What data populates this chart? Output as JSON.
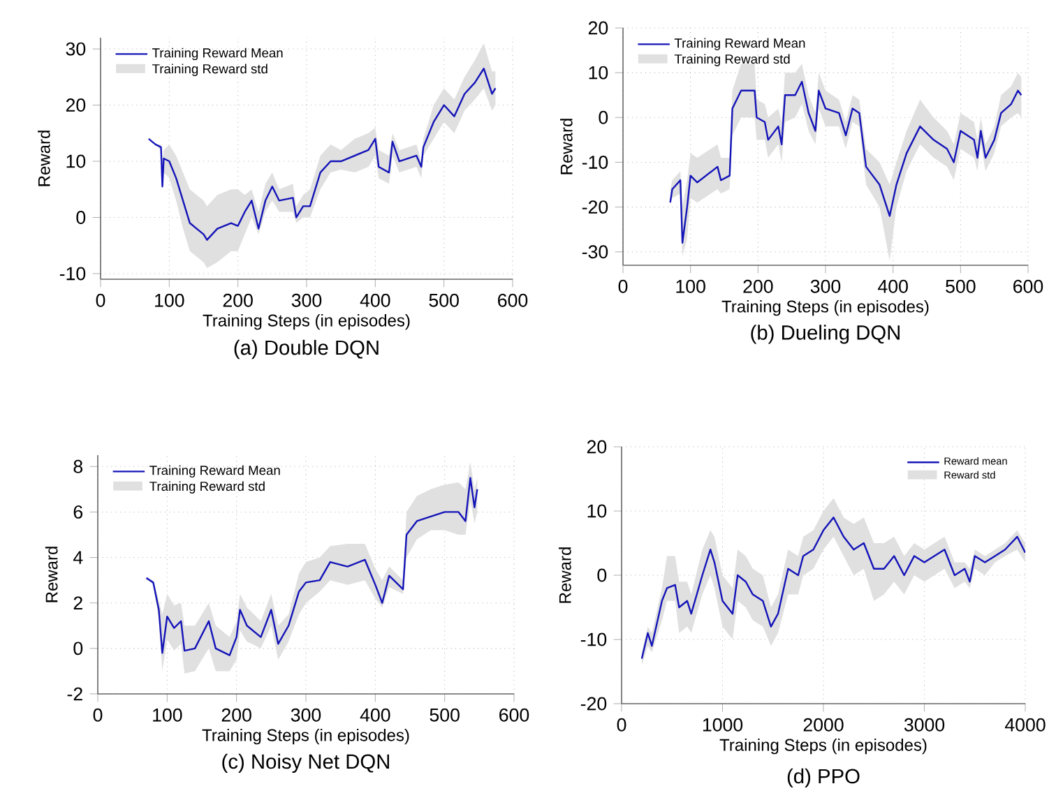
{
  "chart_data": [
    {
      "type": "line",
      "title": "(a) Double DQN",
      "xlabel": "Training Steps (in episodes)",
      "ylabel": "Reward",
      "xlim": [
        0,
        600
      ],
      "ylim": [
        -11,
        32
      ],
      "xticks": [
        0,
        100,
        200,
        300,
        400,
        500,
        600
      ],
      "yticks": [
        -10,
        0,
        10,
        20,
        30
      ],
      "grid": true,
      "legend": "top left",
      "annotations": [
        "Training Reward std"
      ],
      "series": [
        {
          "name": "Training Reward Mean",
          "color": "#1414b8",
          "x": [
            70,
            80,
            88,
            90,
            92,
            100,
            110,
            120,
            130,
            140,
            150,
            155,
            170,
            190,
            200,
            210,
            220,
            230,
            240,
            250,
            260,
            280,
            285,
            295,
            305,
            320,
            335,
            350,
            370,
            390,
            400,
            405,
            420,
            425,
            435,
            460,
            467,
            470,
            485,
            500,
            515,
            530,
            545,
            558,
            570,
            575
          ],
          "values": [
            14,
            13,
            12.5,
            5.5,
            10.5,
            10,
            7,
            3,
            -1,
            -2,
            -3,
            -4,
            -2,
            -1,
            -1.5,
            1,
            3,
            -2,
            3,
            5.5,
            3,
            3.5,
            0,
            2,
            2,
            8,
            10,
            10,
            11,
            12,
            14,
            9,
            8,
            13.5,
            10,
            11,
            9,
            12.5,
            17,
            20,
            18,
            22,
            24,
            26.5,
            22,
            23
          ],
          "lower": [
            14,
            13,
            12,
            5,
            8,
            7,
            3,
            -2,
            -6,
            -7,
            -8,
            -9,
            -8,
            -6,
            -6,
            -3,
            0,
            -3,
            1,
            3,
            1,
            1,
            -1,
            0,
            0,
            5,
            8,
            8.5,
            8,
            9,
            11,
            7,
            6,
            11,
            8,
            9,
            7,
            11,
            14,
            17,
            15,
            19,
            21,
            23,
            19,
            20
          ],
          "upper": [
            14,
            13,
            13,
            10,
            12,
            13,
            11,
            8,
            5,
            4,
            3,
            2,
            4,
            5,
            5,
            4,
            5,
            1,
            6,
            8,
            5,
            6,
            2,
            4,
            5,
            11,
            13,
            12,
            14,
            15,
            16,
            12,
            11,
            15,
            12,
            13,
            10,
            14,
            20,
            23,
            21,
            25,
            28,
            31,
            26,
            26
          ]
        }
      ]
    },
    {
      "type": "line",
      "title": "(b) Dueling DQN",
      "xlabel": "Training Steps (in episodes)",
      "ylabel": "Reward",
      "xlim": [
        0,
        600
      ],
      "ylim": [
        -33,
        20
      ],
      "xticks": [
        0,
        100,
        200,
        300,
        400,
        500,
        600
      ],
      "yticks": [
        -30,
        -20,
        -10,
        0,
        10,
        20
      ],
      "grid": true,
      "legend": "top left",
      "annotations": [
        "Training Reward std"
      ],
      "series": [
        {
          "name": "Training Reward Mean",
          "color": "#1414b8",
          "x": [
            70,
            73,
            85,
            88,
            95,
            100,
            110,
            140,
            145,
            158,
            162,
            175,
            195,
            198,
            210,
            215,
            230,
            235,
            240,
            255,
            265,
            275,
            285,
            290,
            300,
            320,
            330,
            340,
            350,
            360,
            380,
            395,
            405,
            420,
            440,
            460,
            480,
            490,
            500,
            520,
            525,
            530,
            537,
            550,
            560,
            575,
            585,
            590
          ],
          "values": [
            -19,
            -16,
            -14,
            -28,
            -20,
            -13,
            -14.5,
            -11,
            -14,
            -13,
            2,
            6,
            6,
            0,
            -1,
            -5,
            -2,
            -6,
            5,
            5,
            8,
            1,
            -3,
            6,
            2,
            1,
            -4,
            2,
            1,
            -11,
            -15,
            -22,
            -15,
            -8,
            -2,
            -5,
            -7,
            -10,
            -3,
            -5,
            -9,
            -3,
            -9,
            -5,
            1,
            3,
            6,
            5
          ],
          "lower": [
            -19,
            -18,
            -17,
            -31,
            -27,
            -18,
            -19,
            -16,
            -17,
            -16,
            -4,
            0,
            0,
            -5,
            -5,
            -9,
            -6,
            -10,
            -1,
            0,
            3,
            -3,
            -6,
            2,
            -2,
            -2,
            -7,
            -1,
            -2,
            -15,
            -20,
            -32,
            -20,
            -12,
            -6,
            -9,
            -11,
            -14,
            -7,
            -9,
            -12,
            -6,
            -12,
            -8,
            -2,
            0,
            1,
            0
          ],
          "upper": [
            -16,
            -14,
            -12,
            -20,
            -14,
            -8,
            -9,
            -6,
            -9,
            -9,
            6,
            12,
            12,
            4,
            3,
            0,
            2,
            -1,
            10,
            10,
            12,
            5,
            1,
            10,
            6,
            4,
            -1,
            5,
            4,
            -7,
            -10,
            -15,
            -10,
            -3,
            4,
            0,
            -3,
            -6,
            1,
            -1,
            -5,
            0,
            -6,
            -2,
            5,
            7,
            10,
            9
          ]
        }
      ]
    },
    {
      "type": "line",
      "title": "(c) Noisy Net DQN",
      "xlabel": "Training Steps (in episodes)",
      "ylabel": "Reward",
      "xlim": [
        0,
        600
      ],
      "ylim": [
        -2,
        8.5
      ],
      "xticks": [
        0,
        100,
        200,
        300,
        400,
        500,
        600
      ],
      "yticks": [
        -2,
        0,
        2,
        4,
        6,
        8
      ],
      "grid": true,
      "legend": "top left",
      "annotations": [
        "Training Reward std"
      ],
      "series": [
        {
          "name": "Training Reward Mean",
          "color": "#1414b8",
          "x": [
            70,
            80,
            88,
            93,
            100,
            110,
            120,
            125,
            140,
            160,
            170,
            190,
            200,
            205,
            215,
            235,
            250,
            260,
            275,
            290,
            300,
            320,
            335,
            360,
            385,
            400,
            410,
            420,
            440,
            445,
            460,
            480,
            500,
            520,
            530,
            537,
            543,
            547
          ],
          "values": [
            3.1,
            2.9,
            1.7,
            -0.2,
            1.4,
            0.9,
            1.2,
            -0.1,
            0,
            1.2,
            0,
            -0.3,
            0.5,
            1.7,
            1,
            0.5,
            1.7,
            0.2,
            1,
            2.5,
            2.9,
            3,
            3.8,
            3.6,
            3.9,
            2.8,
            2,
            3.2,
            2.6,
            5,
            5.6,
            5.8,
            6,
            6,
            5.6,
            7.5,
            6.2,
            7
          ],
          "lower": [
            3.1,
            2.8,
            1.3,
            -1,
            0.4,
            -0.1,
            0.2,
            -1.1,
            -1,
            0,
            -1,
            -1,
            -0.5,
            0.8,
            0.3,
            0,
            1,
            -0.5,
            0.3,
            1.5,
            2,
            2.5,
            3,
            2.8,
            3,
            2.2,
            1.8,
            2.7,
            2.4,
            4,
            4.8,
            5.2,
            5.2,
            5,
            5,
            6.5,
            5.5,
            6
          ],
          "upper": [
            3.1,
            3,
            2.1,
            1.5,
            2.4,
            1.9,
            2,
            1,
            1,
            2,
            1,
            0.5,
            1.2,
            2.4,
            1.8,
            1.2,
            2.4,
            1,
            1.5,
            3.3,
            3.8,
            4,
            4.5,
            4.6,
            4.6,
            3.5,
            3,
            3.6,
            3,
            6,
            6.7,
            7,
            7.2,
            7.3,
            7,
            8.2,
            7,
            7.5
          ]
        }
      ]
    },
    {
      "type": "line",
      "title": "(d) PPO",
      "xlabel": "Training Steps (in episodes)",
      "ylabel": "Reward",
      "xlim": [
        0,
        4000
      ],
      "ylim": [
        -20,
        20
      ],
      "xticks": [
        0,
        1000,
        2000,
        3000,
        4000
      ],
      "yticks": [
        -20,
        -10,
        0,
        10,
        20
      ],
      "grid": true,
      "legend": "top right",
      "annotations": [
        "Reward std"
      ],
      "series": [
        {
          "name": "Reward mean",
          "color": "#1414b8",
          "x": [
            200,
            260,
            300,
            400,
            450,
            530,
            570,
            650,
            690,
            800,
            880,
            920,
            1000,
            1100,
            1150,
            1230,
            1300,
            1400,
            1480,
            1550,
            1650,
            1750,
            1800,
            1900,
            2000,
            2100,
            2200,
            2300,
            2400,
            2500,
            2600,
            2700,
            2800,
            2900,
            3000,
            3200,
            3300,
            3400,
            3450,
            3500,
            3600,
            3700,
            3800,
            3920,
            4000
          ],
          "values": [
            -13,
            -9,
            -11,
            -4,
            -2,
            -1.5,
            -5,
            -4,
            -6,
            0,
            4,
            2,
            -4,
            -6,
            0,
            -1,
            -3,
            -4,
            -8,
            -6,
            1,
            0,
            3,
            4,
            7,
            9,
            6,
            4,
            5,
            1,
            1,
            3,
            0,
            3,
            2,
            4,
            0,
            1,
            -1,
            3,
            2,
            3,
            4,
            6,
            3.5
          ],
          "lower": [
            -14,
            -11,
            -12,
            -7,
            -4,
            -4,
            -9,
            -8,
            -9,
            -3,
            0,
            -2,
            -8,
            -10,
            -4,
            -5,
            -7,
            -8,
            -11,
            -9,
            -3,
            -3,
            0,
            1,
            4,
            6,
            3,
            0,
            1,
            -4,
            -3,
            -1,
            -3,
            0,
            -1,
            1,
            -2,
            -1,
            -2,
            1,
            0,
            2,
            3,
            4,
            2
          ],
          "upper": [
            -12,
            -8,
            -9,
            -2,
            3,
            3,
            -1,
            -1,
            -3,
            4,
            7,
            6,
            0,
            -2,
            4,
            3,
            1,
            0,
            -5,
            -3,
            4,
            3,
            6,
            7,
            10,
            12,
            9,
            8,
            9,
            5,
            5,
            6,
            3,
            5,
            4,
            6,
            2,
            2,
            1,
            4,
            3,
            4,
            5,
            7,
            5
          ]
        }
      ]
    }
  ]
}
